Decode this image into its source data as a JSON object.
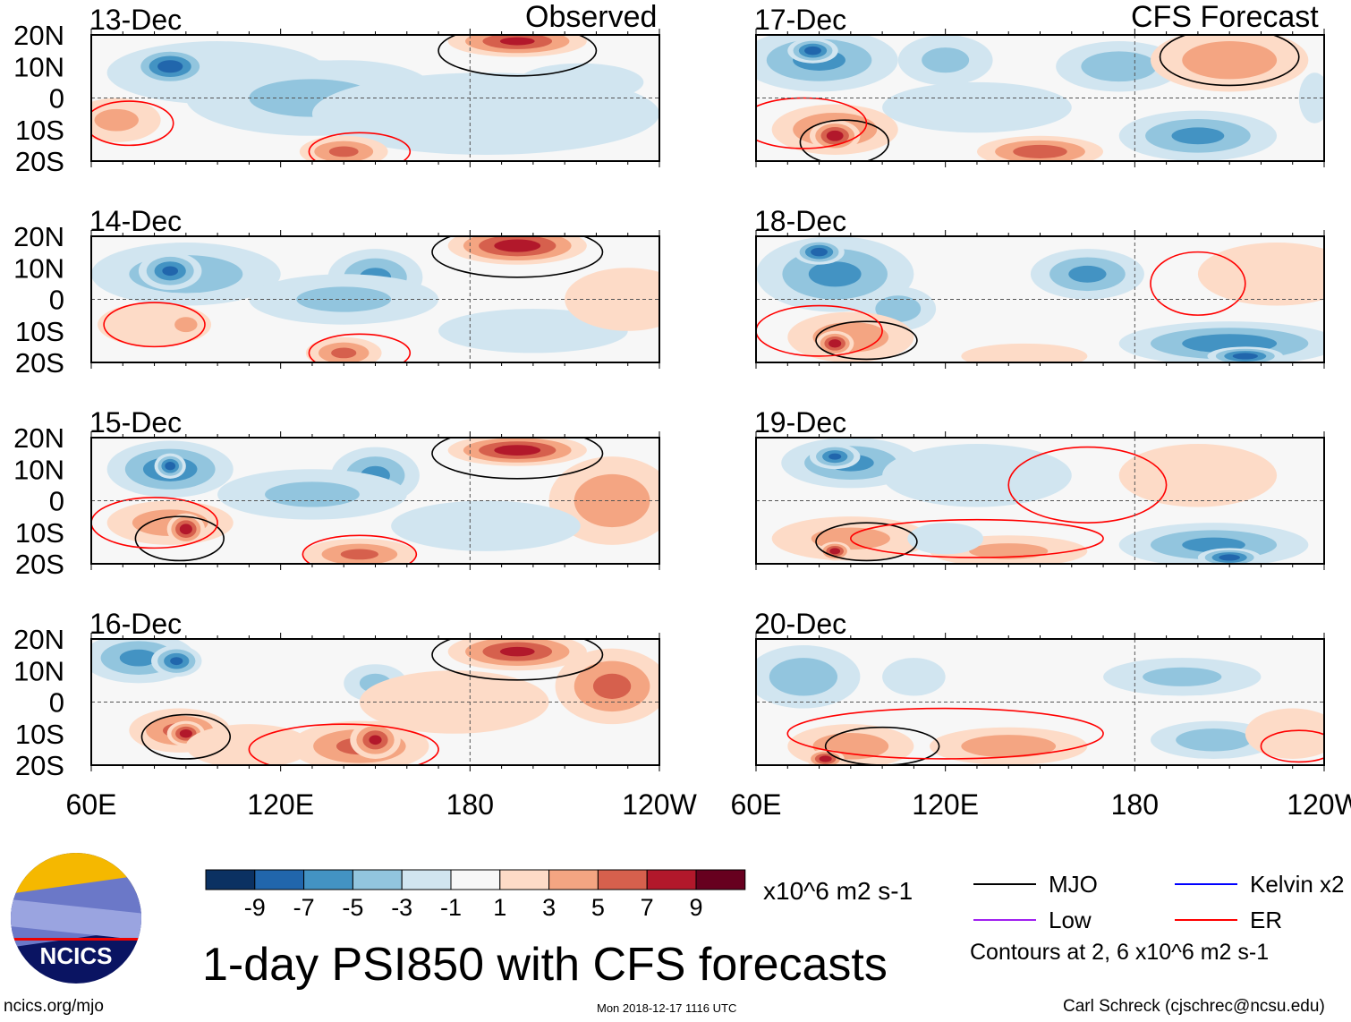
{
  "chart_data": {
    "type": "heatmap",
    "title": "1-day PSI850 with CFS forecasts",
    "units": "x10^6 m2 s-1",
    "left_header": "Observed",
    "right_header": "CFS Forecast",
    "lat_ticks": [
      "20N",
      "10N",
      "0",
      "10S",
      "20S"
    ],
    "lon_ticks": [
      "60E",
      "120E",
      "180",
      "120W"
    ],
    "lon_range": [
      60,
      240
    ],
    "lat_range": [
      -20,
      20
    ],
    "colorbar": {
      "levels": [
        "-9",
        "-7",
        "-5",
        "-3",
        "-1",
        "1",
        "3",
        "5",
        "7",
        "9"
      ],
      "colors": [
        "#0b3162",
        "#2166ac",
        "#4393c3",
        "#92c5de",
        "#d1e5f0",
        "#f7f7f7",
        "#fddbc7",
        "#f4a582",
        "#d6604d",
        "#b2182b",
        "#67001f"
      ]
    },
    "contour_note": "Contours at 2, 6 x10^6 m2 s-1",
    "legend": [
      {
        "label": "MJO",
        "color": "#000000"
      },
      {
        "label": "Kelvin x2",
        "color": "#0000ff"
      },
      {
        "label": "Low",
        "color": "#a020f0"
      },
      {
        "label": "ER",
        "color": "#ff0000"
      }
    ],
    "panels": [
      {
        "date": "13-Dec",
        "blobs": [
          [
            100,
            8,
            35,
            10,
            -3
          ],
          [
            85,
            10,
            12,
            6,
            -9
          ],
          [
            140,
            3,
            28,
            9,
            -6
          ],
          [
            130,
            0,
            40,
            12,
            -4
          ],
          [
            185,
            -10,
            20,
            7,
            -7
          ],
          [
            185,
            -5,
            55,
            13,
            -3
          ],
          [
            68,
            -7,
            14,
            7,
            4
          ],
          [
            140,
            -17,
            14,
            5,
            6
          ],
          [
            195,
            18,
            22,
            5,
            8
          ],
          [
            215,
            5,
            20,
            6,
            -2
          ]
        ],
        "contours": [
          [
            72,
            -8,
            14,
            7,
            "ER"
          ],
          [
            195,
            15,
            25,
            8,
            "MJO"
          ],
          [
            145,
            -17,
            16,
            6,
            "ER"
          ]
        ]
      },
      {
        "date": "14-Dec",
        "blobs": [
          [
            90,
            8,
            30,
            10,
            -5
          ],
          [
            85,
            9,
            10,
            6,
            -8
          ],
          [
            150,
            7,
            15,
            9,
            -6
          ],
          [
            140,
            0,
            30,
            8,
            -4
          ],
          [
            200,
            -10,
            30,
            7,
            -3
          ],
          [
            80,
            -8,
            18,
            7,
            3
          ],
          [
            90,
            -8,
            6,
            4,
            5
          ],
          [
            140,
            -17,
            12,
            5,
            6
          ],
          [
            195,
            17,
            22,
            6,
            9
          ],
          [
            230,
            0,
            20,
            10,
            2
          ]
        ],
        "contours": [
          [
            80,
            -8,
            16,
            7,
            "ER"
          ],
          [
            195,
            15,
            27,
            8,
            "MJO"
          ],
          [
            145,
            -17,
            16,
            6,
            "ER"
          ]
        ]
      },
      {
        "date": "15-Dec",
        "blobs": [
          [
            85,
            10,
            20,
            9,
            -7
          ],
          [
            85,
            11,
            5,
            4,
            -9
          ],
          [
            150,
            8,
            14,
            9,
            -6
          ],
          [
            130,
            2,
            30,
            8,
            -4
          ],
          [
            85,
            -7,
            20,
            7,
            5
          ],
          [
            90,
            -9,
            6,
            5,
            9
          ],
          [
            145,
            -17,
            18,
            5,
            6
          ],
          [
            195,
            16,
            22,
            5,
            9
          ],
          [
            225,
            0,
            20,
            14,
            5
          ],
          [
            185,
            -8,
            30,
            8,
            -3
          ]
        ],
        "contours": [
          [
            88,
            -12,
            14,
            7,
            "MJO"
          ],
          [
            80,
            -7,
            20,
            8,
            "ER"
          ],
          [
            195,
            15,
            27,
            8,
            "MJO"
          ],
          [
            145,
            -17,
            18,
            6,
            "ER"
          ]
        ]
      },
      {
        "date": "16-Dec",
        "blobs": [
          [
            75,
            14,
            18,
            8,
            -6
          ],
          [
            87,
            13,
            8,
            5,
            -8
          ],
          [
            150,
            6,
            10,
            6,
            -4
          ],
          [
            175,
            0,
            30,
            10,
            3
          ],
          [
            88,
            -9,
            16,
            7,
            6
          ],
          [
            90,
            -10,
            6,
            4,
            9
          ],
          [
            145,
            -14,
            22,
            8,
            6
          ],
          [
            150,
            -12,
            8,
            6,
            8
          ],
          [
            195,
            16,
            22,
            6,
            8
          ],
          [
            225,
            5,
            18,
            12,
            6
          ],
          [
            110,
            -14,
            20,
            7,
            3
          ]
        ],
        "contours": [
          [
            90,
            -11,
            14,
            7,
            "MJO"
          ],
          [
            195,
            15,
            27,
            8,
            "MJO"
          ],
          [
            140,
            -15,
            30,
            8,
            "ER"
          ]
        ]
      },
      {
        "date": "17-Dec",
        "blobs": [
          [
            80,
            12,
            25,
            10,
            -6
          ],
          [
            78,
            15,
            8,
            4,
            -9
          ],
          [
            120,
            12,
            15,
            8,
            -4
          ],
          [
            175,
            10,
            20,
            8,
            -5
          ],
          [
            210,
            12,
            25,
            10,
            5
          ],
          [
            85,
            -10,
            20,
            8,
            6
          ],
          [
            85,
            -12,
            8,
            5,
            9
          ],
          [
            150,
            -17,
            20,
            5,
            7
          ],
          [
            200,
            -12,
            25,
            8,
            -6
          ],
          [
            130,
            -3,
            30,
            8,
            -2
          ],
          [
            237,
            0,
            5,
            8,
            -3
          ]
        ],
        "contours": [
          [
            88,
            -14,
            14,
            7,
            "MJO"
          ],
          [
            75,
            -8,
            20,
            8,
            "ER"
          ],
          [
            210,
            13,
            22,
            9,
            "MJO"
          ]
        ]
      },
      {
        "date": "18-Dec",
        "blobs": [
          [
            85,
            8,
            25,
            12,
            -6
          ],
          [
            80,
            15,
            8,
            4,
            -9
          ],
          [
            165,
            8,
            18,
            8,
            -6
          ],
          [
            105,
            -3,
            12,
            7,
            -5
          ],
          [
            90,
            -12,
            20,
            8,
            5
          ],
          [
            85,
            -14,
            6,
            4,
            9
          ],
          [
            210,
            -14,
            35,
            7,
            -7
          ],
          [
            215,
            -18,
            12,
            3,
            -9
          ],
          [
            225,
            8,
            25,
            10,
            2
          ],
          [
            145,
            -18,
            20,
            4,
            2
          ]
        ],
        "contours": [
          [
            95,
            -13,
            16,
            6,
            "MJO"
          ],
          [
            80,
            -10,
            20,
            8,
            "ER"
          ],
          [
            200,
            5,
            15,
            10,
            "ER"
          ]
        ]
      },
      {
        "date": "19-Dec",
        "blobs": [
          [
            90,
            12,
            22,
            8,
            -6
          ],
          [
            85,
            14,
            8,
            4,
            -8
          ],
          [
            130,
            8,
            30,
            10,
            -3
          ],
          [
            200,
            8,
            25,
            10,
            3
          ],
          [
            90,
            -12,
            25,
            7,
            4
          ],
          [
            85,
            -16,
            5,
            3,
            9
          ],
          [
            140,
            -16,
            25,
            5,
            4
          ],
          [
            205,
            -14,
            30,
            7,
            -6
          ],
          [
            210,
            -18,
            10,
            3,
            -9
          ],
          [
            120,
            -12,
            12,
            5,
            -3
          ]
        ],
        "contours": [
          [
            95,
            -13,
            16,
            6,
            "MJO"
          ],
          [
            165,
            5,
            25,
            12,
            "ER"
          ],
          [
            130,
            -12,
            40,
            6,
            "ER"
          ]
        ]
      },
      {
        "date": "20-Dec",
        "blobs": [
          [
            75,
            8,
            18,
            10,
            -5
          ],
          [
            195,
            8,
            25,
            6,
            -4
          ],
          [
            110,
            8,
            10,
            6,
            -3
          ],
          [
            90,
            -14,
            20,
            7,
            5
          ],
          [
            82,
            -18,
            6,
            3,
            9
          ],
          [
            140,
            -14,
            25,
            6,
            5
          ],
          [
            205,
            -12,
            20,
            6,
            -5
          ],
          [
            230,
            -10,
            15,
            8,
            3
          ]
        ],
        "contours": [
          [
            100,
            -14,
            18,
            6,
            "MJO"
          ],
          [
            120,
            -10,
            50,
            8,
            "ER"
          ],
          [
            232,
            -14,
            12,
            5,
            "ER"
          ]
        ]
      }
    ]
  },
  "footer": {
    "site": "ncics.org/mjo",
    "timestamp": "Mon 2018-12-17 1116 UTC",
    "author": "Carl Schreck (cjschrec@ncsu.edu)",
    "logo_text": "NCICS"
  }
}
